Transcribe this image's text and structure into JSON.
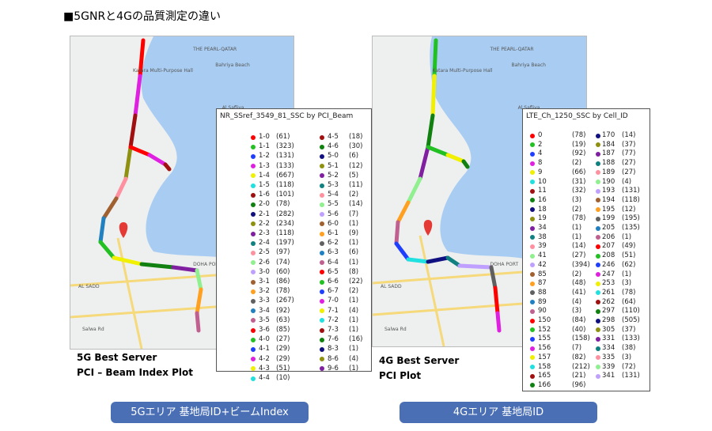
{
  "heading": "■5GNRと4Gの品質測定の違い",
  "maps": [
    {
      "labels": [
        "THE PEARL-QATAR",
        "Bahriya Beach",
        "Katara Multi-Purpose Hall",
        "Al Safliya",
        "DOHA PORT",
        "AL SADD",
        "Salwa Rd"
      ]
    },
    {
      "labels": [
        "THE PEARL-QATAR",
        "Bahriya Beach",
        "Katara Multi-Purpose Hall",
        "Al Safliya",
        "DOHA PORT",
        "AL SADD",
        "Salwa Rd"
      ]
    }
  ],
  "legends": [
    {
      "title": "NR_SSref_3549_81_SSC by PCI_Beam",
      "palette": [
        "#ff0000",
        "#22c022",
        "#1f3fff",
        "#e020e0",
        "#f0f000",
        "#20e0e0",
        "#a01010",
        "#108010",
        "#101080",
        "#909010",
        "#8020a0",
        "#108080",
        "#ff90a0",
        "#90f090",
        "#c0a0ff",
        "#a06030",
        "#ffa020",
        "#606060",
        "#2080c0",
        "#c06090"
      ],
      "columns": [
        [
          [
            "1-0",
            "(61)"
          ],
          [
            "1-1",
            "(323)"
          ],
          [
            "1-2",
            "(131)"
          ],
          [
            "1-3",
            "(133)"
          ],
          [
            "1-4",
            "(667)"
          ],
          [
            "1-5",
            "(118)"
          ],
          [
            "1-6",
            "(101)"
          ],
          [
            "2-0",
            "(78)"
          ],
          [
            "2-1",
            "(282)"
          ],
          [
            "2-2",
            "(234)"
          ],
          [
            "2-3",
            "(118)"
          ],
          [
            "2-4",
            "(197)"
          ],
          [
            "2-5",
            "(97)"
          ],
          [
            "2-6",
            "(74)"
          ],
          [
            "3-0",
            "(60)"
          ],
          [
            "3-1",
            "(86)"
          ],
          [
            "3-2",
            "(78)"
          ],
          [
            "3-3",
            "(267)"
          ],
          [
            "3-4",
            "(92)"
          ],
          [
            "3-5",
            "(63)"
          ],
          [
            "3-6",
            "(85)"
          ],
          [
            "4-0",
            "(27)"
          ],
          [
            "4-1",
            "(29)"
          ],
          [
            "4-2",
            "(29)"
          ],
          [
            "4-3",
            "(51)"
          ],
          [
            "4-4",
            "(10)"
          ]
        ],
        [
          [
            "4-5",
            "(18)"
          ],
          [
            "4-6",
            "(30)"
          ],
          [
            "5-0",
            "(6)"
          ],
          [
            "5-1",
            "(12)"
          ],
          [
            "5-2",
            "(5)"
          ],
          [
            "5-3",
            "(11)"
          ],
          [
            "5-4",
            "(2)"
          ],
          [
            "5-5",
            "(14)"
          ],
          [
            "5-6",
            "(7)"
          ],
          [
            "6-0",
            "(1)"
          ],
          [
            "6-1",
            "(9)"
          ],
          [
            "6-2",
            "(1)"
          ],
          [
            "6-3",
            "(6)"
          ],
          [
            "6-4",
            "(1)"
          ],
          [
            "6-5",
            "(8)"
          ],
          [
            "6-6",
            "(22)"
          ],
          [
            "6-7",
            "(2)"
          ],
          [
            "7-0",
            "(1)"
          ],
          [
            "7-1",
            "(4)"
          ],
          [
            "7-2",
            "(1)"
          ],
          [
            "7-3",
            "(1)"
          ],
          [
            "7-6",
            "(16)"
          ],
          [
            "8-3",
            "(1)"
          ],
          [
            "8-6",
            "(4)"
          ],
          [
            "9-6",
            "(1)"
          ]
        ]
      ]
    },
    {
      "title": "LTE_Ch_1250_SSC by Cell_ID",
      "palette": [
        "#ff0000",
        "#22c022",
        "#1f3fff",
        "#e020e0",
        "#f0f000",
        "#20e0e0",
        "#a01010",
        "#108010",
        "#101080",
        "#909010",
        "#8020a0",
        "#108080",
        "#ff90a0",
        "#90f090",
        "#c0a0ff",
        "#a06030",
        "#ffa020",
        "#606060",
        "#2080c0",
        "#c06090"
      ],
      "columns": [
        [
          [
            "0",
            "(78)"
          ],
          [
            "2",
            "(19)"
          ],
          [
            "4",
            "(92)"
          ],
          [
            "8",
            "(2)"
          ],
          [
            "9",
            "(66)"
          ],
          [
            "10",
            "(31)"
          ],
          [
            "11",
            "(32)"
          ],
          [
            "16",
            "(3)"
          ],
          [
            "18",
            "(2)"
          ],
          [
            "19",
            "(78)"
          ],
          [
            "34",
            "(1)"
          ],
          [
            "38",
            "(1)"
          ],
          [
            "39",
            "(14)"
          ],
          [
            "41",
            "(27)"
          ],
          [
            "42",
            "(394)"
          ],
          [
            "85",
            "(2)"
          ],
          [
            "87",
            "(48)"
          ],
          [
            "88",
            "(41)"
          ],
          [
            "89",
            "(4)"
          ],
          [
            "90",
            "(3)"
          ],
          [
            "150",
            "(84)"
          ],
          [
            "152",
            "(40)"
          ],
          [
            "155",
            "(158)"
          ],
          [
            "156",
            "(7)"
          ],
          [
            "157",
            "(82)"
          ],
          [
            "158",
            "(212)"
          ],
          [
            "165",
            "(21)"
          ],
          [
            "166",
            "(96)"
          ]
        ],
        [
          [
            "170",
            "(14)"
          ],
          [
            "184",
            "(37)"
          ],
          [
            "187",
            "(77)"
          ],
          [
            "188",
            "(27)"
          ],
          [
            "189",
            "(27)"
          ],
          [
            "190",
            "(4)"
          ],
          [
            "193",
            "(131)"
          ],
          [
            "194",
            "(118)"
          ],
          [
            "195",
            "(12)"
          ],
          [
            "199",
            "(195)"
          ],
          [
            "205",
            "(135)"
          ],
          [
            "206",
            "(1)"
          ],
          [
            "207",
            "(49)"
          ],
          [
            "208",
            "(51)"
          ],
          [
            "246",
            "(62)"
          ],
          [
            "247",
            "(1)"
          ],
          [
            "253",
            "(3)"
          ],
          [
            "261",
            "(78)"
          ],
          [
            "262",
            "(64)"
          ],
          [
            "297",
            "(110)"
          ],
          [
            "298",
            "(505)"
          ],
          [
            "305",
            "(37)"
          ],
          [
            "331",
            "(133)"
          ],
          [
            "334",
            "(38)"
          ],
          [
            "335",
            "(3)"
          ],
          [
            "339",
            "(72)"
          ],
          [
            "341",
            "(131)"
          ]
        ]
      ]
    }
  ],
  "captions": [
    [
      "5G Best Server",
      "PCI – Beam Index Plot"
    ],
    [
      "4G Best Server",
      "PCI Plot"
    ]
  ],
  "buttons": [
    "5Gエリア 基地局ID+ビームIndex",
    "4Gエリア 基地局ID"
  ]
}
